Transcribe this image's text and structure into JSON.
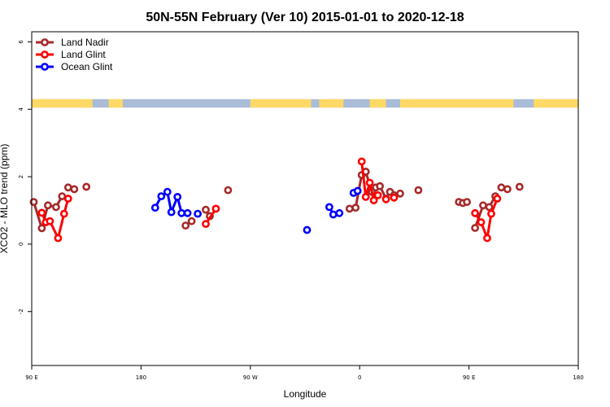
{
  "chart_data": {
    "type": "line",
    "title": "50N-55N February (Ver 10)   2015-01-01 to 2020-12-18",
    "xlabel": "Longitude",
    "ylabel": "XCO2 - MLO trend (ppm)",
    "xlim": [
      -90,
      180
    ],
    "ylim": [
      -3.6,
      6.3
    ],
    "x_ticks": [
      {
        "value": -90,
        "label": "90 E"
      },
      {
        "value": -36,
        "label": "180"
      },
      {
        "value": 18,
        "label": "90 W"
      },
      {
        "value": 72,
        "label": "0"
      },
      {
        "value": 126,
        "label": "90 E"
      },
      {
        "value": 180,
        "label": "180"
      }
    ],
    "y_ticks": [
      {
        "value": -2,
        "label": "-2"
      },
      {
        "value": 0,
        "label": "0"
      },
      {
        "value": 2,
        "label": "2"
      },
      {
        "value": 4,
        "label": "4"
      },
      {
        "value": 6,
        "label": "6"
      }
    ],
    "grid": false,
    "legend_position": "top-left",
    "landmask_band": {
      "ymin": 4.05,
      "ymax": 4.3,
      "land_color": "#FFD966",
      "ocean_color": "#A9BCD8"
    },
    "series": [
      {
        "name": "Land Nadir",
        "color": "#A52A2A",
        "segments": [
          [
            [
              -89,
              1.25
            ],
            [
              -85,
              0.47
            ],
            [
              -82,
              1.15
            ],
            [
              -78,
              1.1
            ],
            [
              -75,
              1.42
            ]
          ],
          [
            [
              -72,
              1.68
            ],
            [
              -69,
              1.63
            ]
          ],
          [
            [
              -63,
              1.7
            ]
          ],
          [
            [
              -14,
              0.55
            ],
            [
              -11,
              0.68
            ]
          ],
          [
            [
              -4,
              1.02
            ],
            [
              -2,
              0.83
            ]
          ],
          [
            [
              7,
              1.6
            ]
          ],
          [
            [
              67,
              1.05
            ],
            [
              70,
              1.08
            ],
            [
              73,
              2.05
            ],
            [
              75,
              2.15
            ],
            [
              78,
              1.55
            ],
            [
              80,
              1.68
            ],
            [
              82,
              1.72
            ],
            [
              85,
              1.35
            ],
            [
              87,
              1.55
            ],
            [
              89,
              1.45
            ],
            [
              92,
              1.5
            ]
          ],
          [
            [
              101,
              1.6
            ]
          ],
          [
            [
              121,
              1.25
            ],
            [
              123,
              1.22
            ],
            [
              125,
              1.25
            ]
          ],
          [
            [
              129,
              0.48
            ],
            [
              133,
              1.15
            ],
            [
              136,
              1.1
            ],
            [
              139,
              1.42
            ]
          ],
          [
            [
              142,
              1.68
            ],
            [
              145,
              1.63
            ]
          ],
          [
            [
              151,
              1.7
            ]
          ]
        ]
      },
      {
        "name": "Land Glint",
        "color": "#FF0000",
        "segments": [
          [
            [
              -85,
              0.93
            ],
            [
              -83,
              0.65
            ],
            [
              -81,
              0.68
            ],
            [
              -77,
              0.18
            ],
            [
              -74,
              0.9
            ],
            [
              -72,
              1.35
            ]
          ],
          [
            [
              -4,
              0.6
            ],
            [
              1,
              1.05
            ]
          ],
          [
            [
              73,
              2.45
            ],
            [
              75,
              1.4
            ],
            [
              77,
              1.82
            ],
            [
              79,
              1.3
            ],
            [
              81,
              1.45
            ]
          ],
          [
            [
              85,
              1.33
            ]
          ],
          [
            [
              89,
              1.38
            ]
          ],
          [
            [
              129,
              0.92
            ],
            [
              132,
              0.65
            ],
            [
              135,
              0.18
            ],
            [
              137,
              0.9
            ],
            [
              140,
              1.35
            ]
          ]
        ]
      },
      {
        "name": "Ocean Glint",
        "color": "#0000FF",
        "segments": [
          [
            [
              -29,
              1.08
            ],
            [
              -26,
              1.42
            ],
            [
              -23,
              1.55
            ],
            [
              -21,
              0.95
            ],
            [
              -18,
              1.4
            ],
            [
              -16,
              0.92
            ],
            [
              -13,
              0.92
            ]
          ],
          [
            [
              -8,
              0.9
            ]
          ],
          [
            [
              46,
              0.42
            ]
          ],
          [
            [
              57,
              1.1
            ],
            [
              59,
              0.88
            ],
            [
              62,
              0.92
            ]
          ],
          [
            [
              69,
              1.52
            ],
            [
              71,
              1.58
            ]
          ]
        ]
      }
    ]
  }
}
